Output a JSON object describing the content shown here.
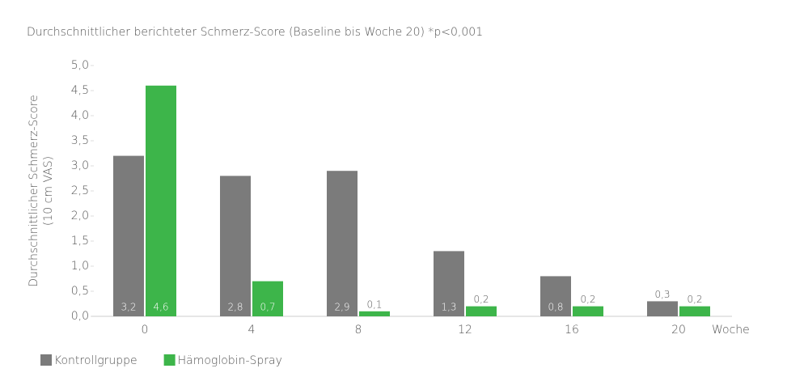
{
  "chart_data": {
    "type": "bar",
    "title": "Durchschnittlicher berichteter Schmerz-Score (Baseline bis Woche 20) *p<0,001",
    "ylabel": [
      "Durchschnittlicher Schmerz-Score",
      "(10 cm VAS)"
    ],
    "xlabel": "Woche",
    "categories": [
      "0",
      "4",
      "8",
      "12",
      "16",
      "20"
    ],
    "series": [
      {
        "name": "Kontrollgruppe",
        "color": "#7b7b7b",
        "values": [
          3.2,
          2.8,
          2.9,
          1.3,
          0.8,
          0.3
        ],
        "value_labels": [
          "3,2",
          "2,8",
          "2,9",
          "1,3",
          "0,8",
          "0,3"
        ]
      },
      {
        "name": "Hämoglobin-Spray",
        "color": "#3db54a",
        "values": [
          4.6,
          0.7,
          0.1,
          0.2,
          0.2,
          0.2
        ],
        "value_labels": [
          "4,6",
          "0,7",
          "0,1",
          "0,2",
          "0,2",
          "0,2"
        ]
      }
    ],
    "ylim": [
      0,
      5
    ],
    "yticks": [
      {
        "value": 0,
        "label": "0,0"
      },
      {
        "value": 0.5,
        "label": "0,5"
      },
      {
        "value": 1,
        "label": "1,0"
      },
      {
        "value": 1.5,
        "label": "1,5"
      },
      {
        "value": 2,
        "label": "2,0"
      },
      {
        "value": 2.5,
        "label": "2,5"
      },
      {
        "value": 3,
        "label": "3,0"
      },
      {
        "value": 3.5,
        "label": "3,5"
      },
      {
        "value": 4,
        "label": "4,0"
      },
      {
        "value": 4.5,
        "label": "4,5"
      },
      {
        "value": 5,
        "label": "5,0"
      }
    ],
    "legend": "bottom-left"
  }
}
